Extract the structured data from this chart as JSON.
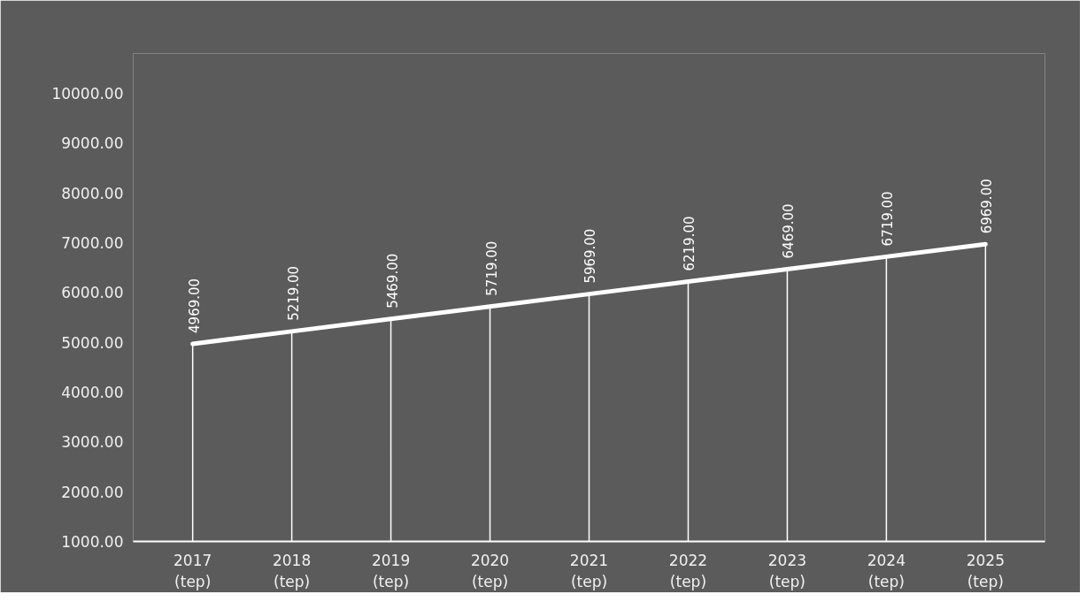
{
  "chart_data": {
    "type": "line",
    "categories": [
      "2017\n(tep)",
      "2018\n(tep)",
      "2019\n(tep)",
      "2020\n(tep)",
      "2021\n(tep)",
      "2022\n(tep)",
      "2023\n(tep)",
      "2024\n(tep)",
      "2025\n(tep)"
    ],
    "series": [
      {
        "color": "#ffffff",
        "values": [
          4969,
          5219,
          5469,
          5719,
          5969,
          6219,
          6469,
          6719,
          6969
        ],
        "value_labels": [
          "4969.00",
          "5219.00",
          "5469.00",
          "5719.00",
          "5969.00",
          "6219.00",
          "6469.00",
          "6719.00",
          "6969.00"
        ]
      }
    ],
    "ylim": [
      1000,
      10800
    ],
    "yticks": [
      {
        "value": 1000,
        "label": "1000.00"
      },
      {
        "value": 2000,
        "label": "2000.00"
      },
      {
        "value": 3000,
        "label": "3000.00"
      },
      {
        "value": 4000,
        "label": "4000.00"
      },
      {
        "value": 5000,
        "label": "5000.00"
      },
      {
        "value": 6000,
        "label": "6000.00"
      },
      {
        "value": 7000,
        "label": "7000.00"
      },
      {
        "value": 8000,
        "label": "8000.00"
      },
      {
        "value": 9000,
        "label": "9000.00"
      },
      {
        "value": 10000,
        "label": "10000.00"
      }
    ],
    "grid": false,
    "marker": "none",
    "line_style": "solid"
  }
}
